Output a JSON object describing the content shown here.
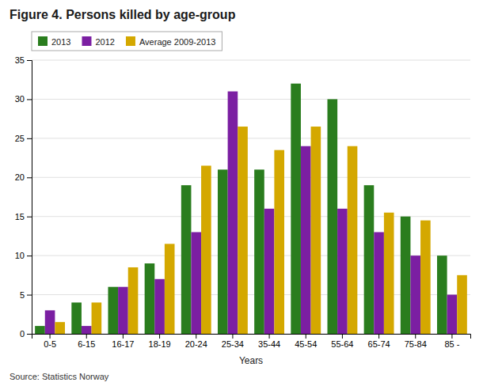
{
  "chart_data": {
    "type": "bar",
    "title": "Figure 4. Persons killed by age-group",
    "xlabel": "Years",
    "annotations": [
      "Source: Statistics Norway"
    ],
    "categories": [
      "0-5",
      "6-15",
      "16-17",
      "18-19",
      "20-24",
      "25-34",
      "35-44",
      "45-54",
      "55-64",
      "65-74",
      "75-84",
      "85 -"
    ],
    "series": [
      {
        "name": "2013",
        "color": "#2a7d1e",
        "values": [
          1,
          4,
          6,
          9,
          19,
          21,
          21,
          32,
          30,
          19,
          15,
          10
        ]
      },
      {
        "name": "2012",
        "color": "#7b1fa2",
        "values": [
          3,
          1,
          6,
          7,
          13,
          31,
          16,
          24,
          16,
          13,
          10,
          5
        ]
      },
      {
        "name": "Average 2009-2013",
        "color": "#d4a800",
        "values": [
          1.5,
          4,
          8.5,
          11.5,
          21.5,
          26.5,
          23.5,
          26.5,
          24,
          15.5,
          14.5,
          7.5
        ]
      }
    ],
    "ylim": [
      0,
      35
    ],
    "yticks": [
      0,
      5,
      10,
      15,
      20,
      25,
      30,
      35
    ],
    "grid": true,
    "legend": "upper left"
  }
}
